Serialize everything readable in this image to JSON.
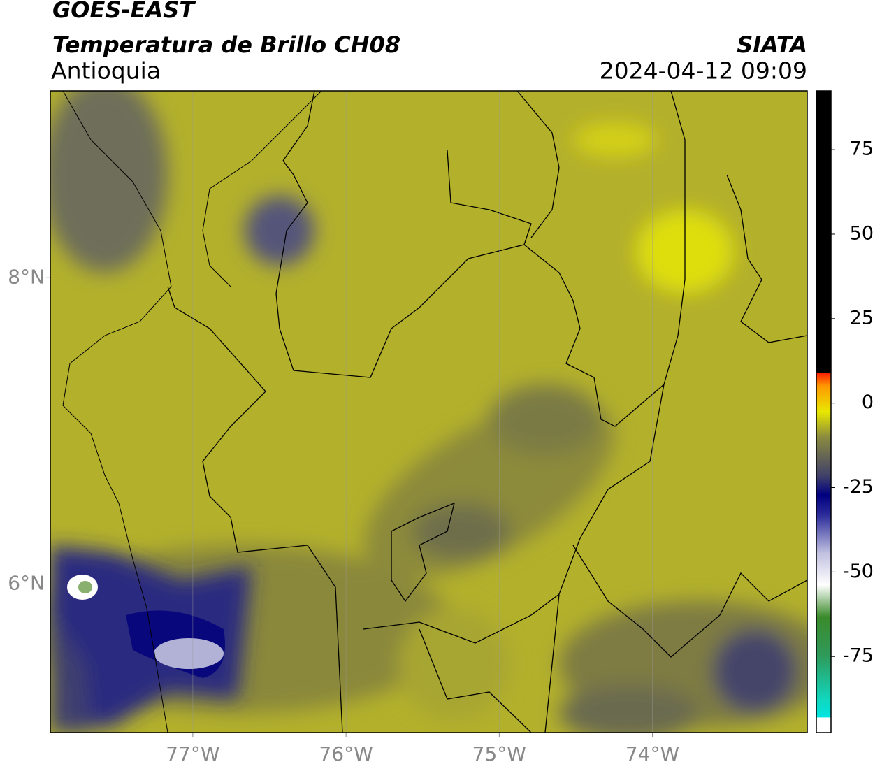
{
  "header": {
    "title": "GOES-EAST",
    "subtitle": "Temperatura de Brillo CH08",
    "region": "Antioquia",
    "source": "SIATA",
    "datetime": "2024-04-12 09:09"
  },
  "map": {
    "xlim": [
      -77.93,
      -72.99
    ],
    "ylim": [
      5.03,
      9.22
    ],
    "xticks": [
      {
        "value": -77,
        "label": "77°W"
      },
      {
        "value": -76,
        "label": "76°W"
      },
      {
        "value": -75,
        "label": "75°W"
      },
      {
        "value": -74,
        "label": "74°W"
      }
    ],
    "yticks": [
      {
        "value": 8,
        "label": "8°N"
      },
      {
        "value": 6,
        "label": "6°N"
      }
    ],
    "grid": true
  },
  "colorbar": {
    "lim": [
      -97.5,
      92.4
    ],
    "ticks": [
      75,
      50,
      25,
      0,
      -25,
      -50,
      -75
    ]
  }
}
